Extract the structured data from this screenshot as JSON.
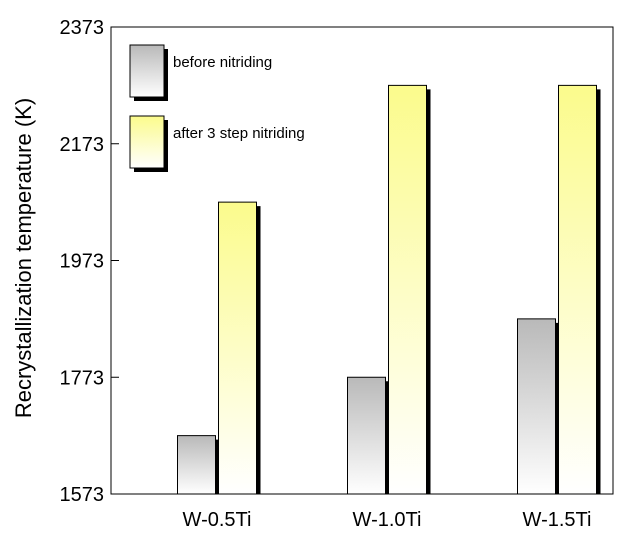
{
  "chart_data": {
    "type": "bar",
    "categories": [
      "W-0.5Ti",
      "W-1.0Ti",
      "W-1.5Ti"
    ],
    "series": [
      {
        "name": "before nitriding",
        "values": [
          1673,
          1773,
          1873
        ]
      },
      {
        "name": "after 3 step nitriding",
        "values": [
          2073,
          2273,
          2273
        ]
      }
    ],
    "title": "",
    "xlabel": "",
    "ylabel": "Recrystallization  temperature  (K)",
    "ylim": [
      1573,
      2373
    ],
    "yticks": [
      1573,
      1773,
      1973,
      2173,
      2373
    ],
    "grid": false,
    "legend_position": "top-left",
    "colors": {
      "before nitriding": [
        "#b9b9b9",
        "#ffffff"
      ],
      "after 3 step nitriding": [
        "#fbfb8c",
        "#ffffff"
      ]
    }
  }
}
